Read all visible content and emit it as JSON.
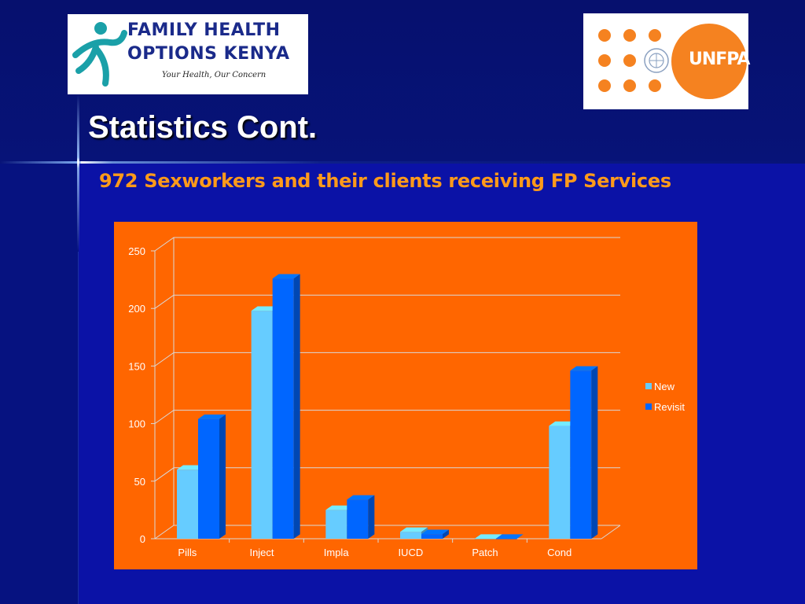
{
  "slide": {
    "title": "Statistics Cont.",
    "subtitle": "972 Sexworkers and their clients receiving FP Services"
  },
  "logos": {
    "left": {
      "line1": "FAMILY HEALTH",
      "line2": "OPTIONS KENYA",
      "tagline": "Your Health, Our Concern"
    },
    "right": {
      "text": "UNFPA"
    }
  },
  "colors": {
    "chart_background": "#ff6600",
    "series_new": "#66ccff",
    "series_revisit": "#0066ff",
    "title": "#ffffff",
    "subtitle": "#ff9a1a"
  },
  "chart_data": {
    "type": "bar",
    "title": "",
    "xlabel": "",
    "ylabel": "",
    "categories": [
      "Pills",
      "Inject",
      "Impla",
      "IUCD",
      "Patch",
      "Cond"
    ],
    "series": [
      {
        "name": "New",
        "values": [
          60,
          198,
          25,
          6,
          0,
          98
        ]
      },
      {
        "name": "Revisit",
        "values": [
          104,
          226,
          34,
          4,
          0,
          146
        ]
      }
    ],
    "ylim": [
      0,
      250
    ],
    "yticks": [
      "0",
      "50",
      "100",
      "150",
      "200",
      "250"
    ],
    "grid": true,
    "legend": "right",
    "style": "3d-clustered-column"
  }
}
